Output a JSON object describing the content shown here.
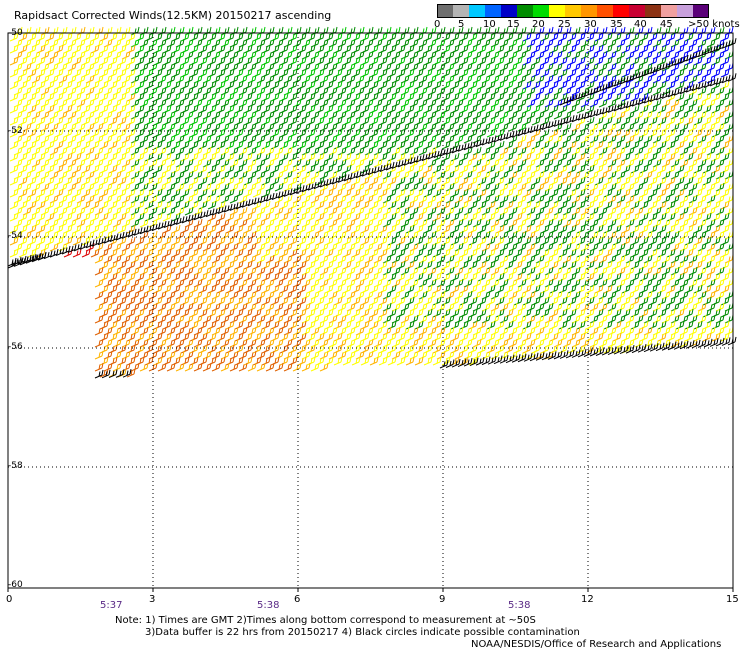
{
  "title": "Rapidsact Corrected Winds(12.5KM) 20150217 ascending",
  "color_scale": {
    "colors": [
      "#6e6e6e",
      "#b4b4b4",
      "#00c8ff",
      "#0064ff",
      "#0000c8",
      "#008c00",
      "#00dc00",
      "#ffff00",
      "#ffc800",
      "#ff9600",
      "#ff5000",
      "#ff0000",
      "#c80032",
      "#8c3214",
      "#f0a0a0",
      "#c8a0dc",
      "#5a0078"
    ],
    "labels": [
      "0",
      "5",
      "10",
      "15",
      "20",
      "25",
      "30",
      "35",
      "40",
      "45",
      ">50 knots"
    ]
  },
  "axes": {
    "lat_labels": [
      "-50",
      "-52",
      "-54",
      "-56",
      "-58",
      "-60"
    ],
    "lon_labels": [
      "0",
      "3",
      "6",
      "9",
      "12",
      "15"
    ],
    "time_labels": [
      "5:37",
      "5:38",
      "5:38"
    ]
  },
  "notes": {
    "line1": "Note: 1) Times are GMT 2)Times along bottom correspond to measurement at ~50S",
    "line2": "3)Data buffer is 22 hrs from 20150217 4) Black circles indicate possible contamination",
    "line3": "NOAA/NESDIS/Office of Research and Applications"
  },
  "legend_colors": {
    "black": "#000000",
    "red": "#dc0000",
    "orange": "#e06000",
    "amber": "#ffb400",
    "yellow": "#ffff00",
    "green": "#008c00",
    "lightgreen": "#00c800",
    "blue": "#0000ff"
  }
}
